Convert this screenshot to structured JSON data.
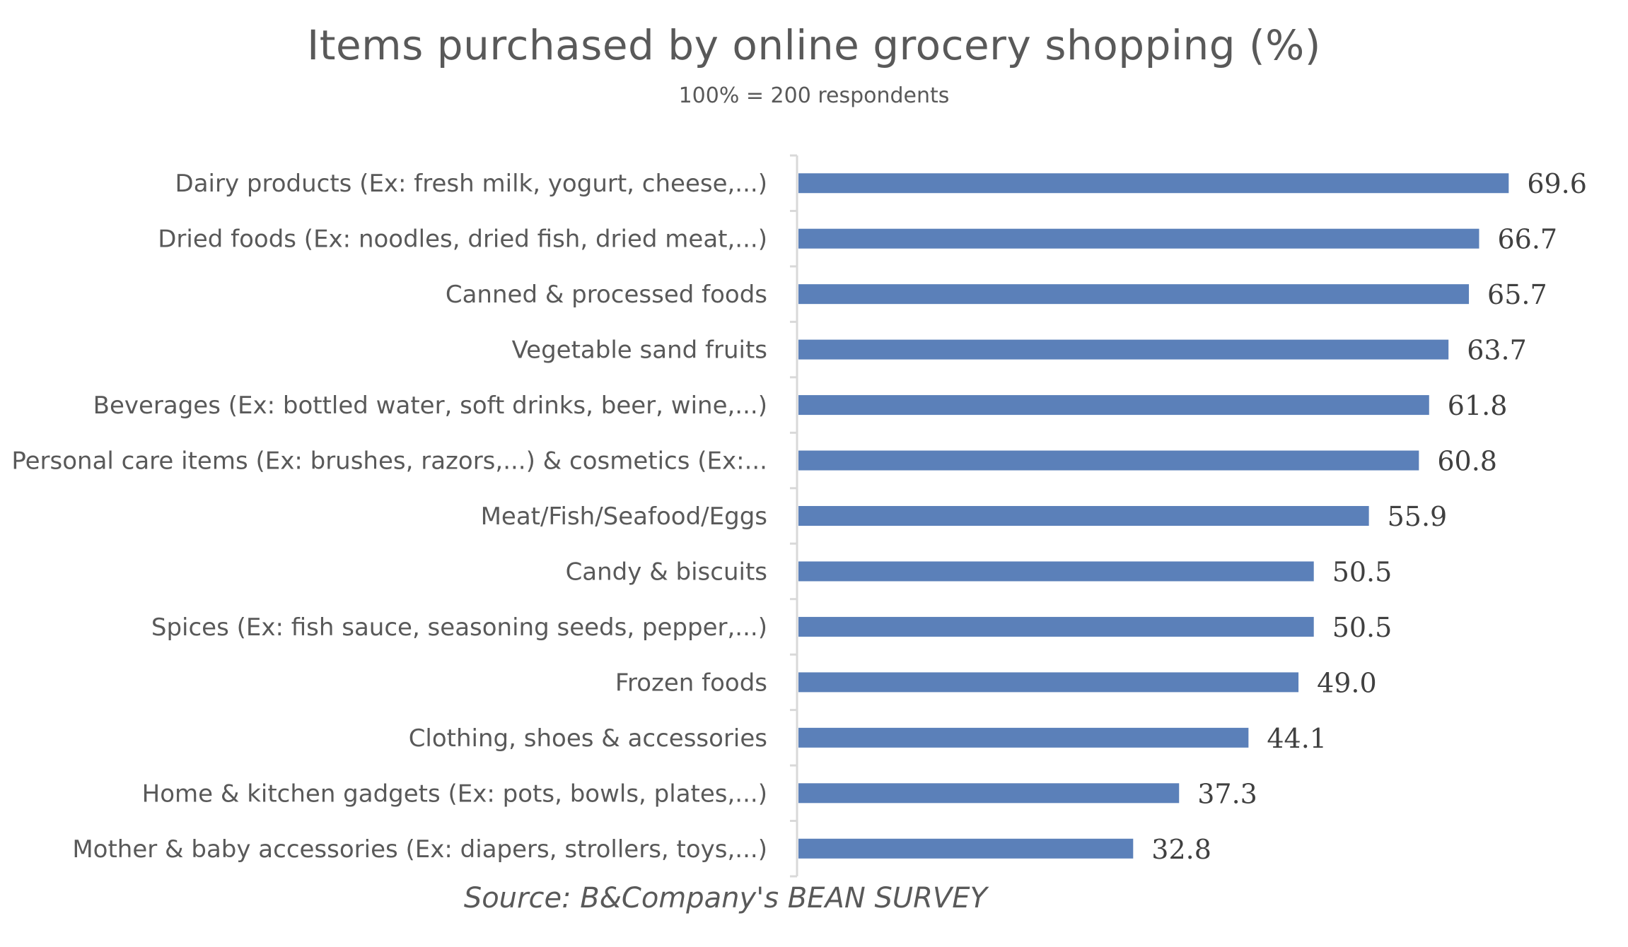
{
  "chart_data": {
    "type": "bar",
    "orientation": "horizontal",
    "title": "Items purchased by online grocery shopping (%)",
    "subtitle": "100% = 200 respondents",
    "source": "Source: B&Company's BEAN SURVEY",
    "categories": [
      "Dairy products (Ex: fresh milk, yogurt, cheese,...)",
      "Dried foods (Ex: noodles, dried fish, dried meat,...)",
      "Canned & processed foods",
      "Vegetable sand fruits",
      "Beverages (Ex: bottled water, soft drinks, beer, wine,...)",
      "Personal care items (Ex: brushes, razors,...) & cosmetics (Ex:...",
      "Meat/Fish/Seafood/Eggs",
      "Candy & biscuits",
      "Spices (Ex: fish sauce, seasoning seeds, pepper,...)",
      "Frozen foods",
      "Clothing, shoes & accessories",
      "Home & kitchen gadgets (Ex: pots, bowls, plates,...)",
      "Mother & baby accessories (Ex: diapers, strollers, toys,...)"
    ],
    "values": [
      69.6,
      66.7,
      65.7,
      63.7,
      61.8,
      60.8,
      55.9,
      50.5,
      50.5,
      49.0,
      44.1,
      37.3,
      32.8
    ],
    "value_labels": [
      "69.6",
      "66.7",
      "65.7",
      "63.7",
      "61.8",
      "60.8",
      "55.9",
      "50.5",
      "50.5",
      "49.0",
      "44.1",
      "37.3",
      "32.8"
    ],
    "xlim": [
      0,
      70
    ],
    "bar_color": "#5B80B9",
    "axis_color": "#D9D9D9",
    "grid": false,
    "legend": "none"
  }
}
